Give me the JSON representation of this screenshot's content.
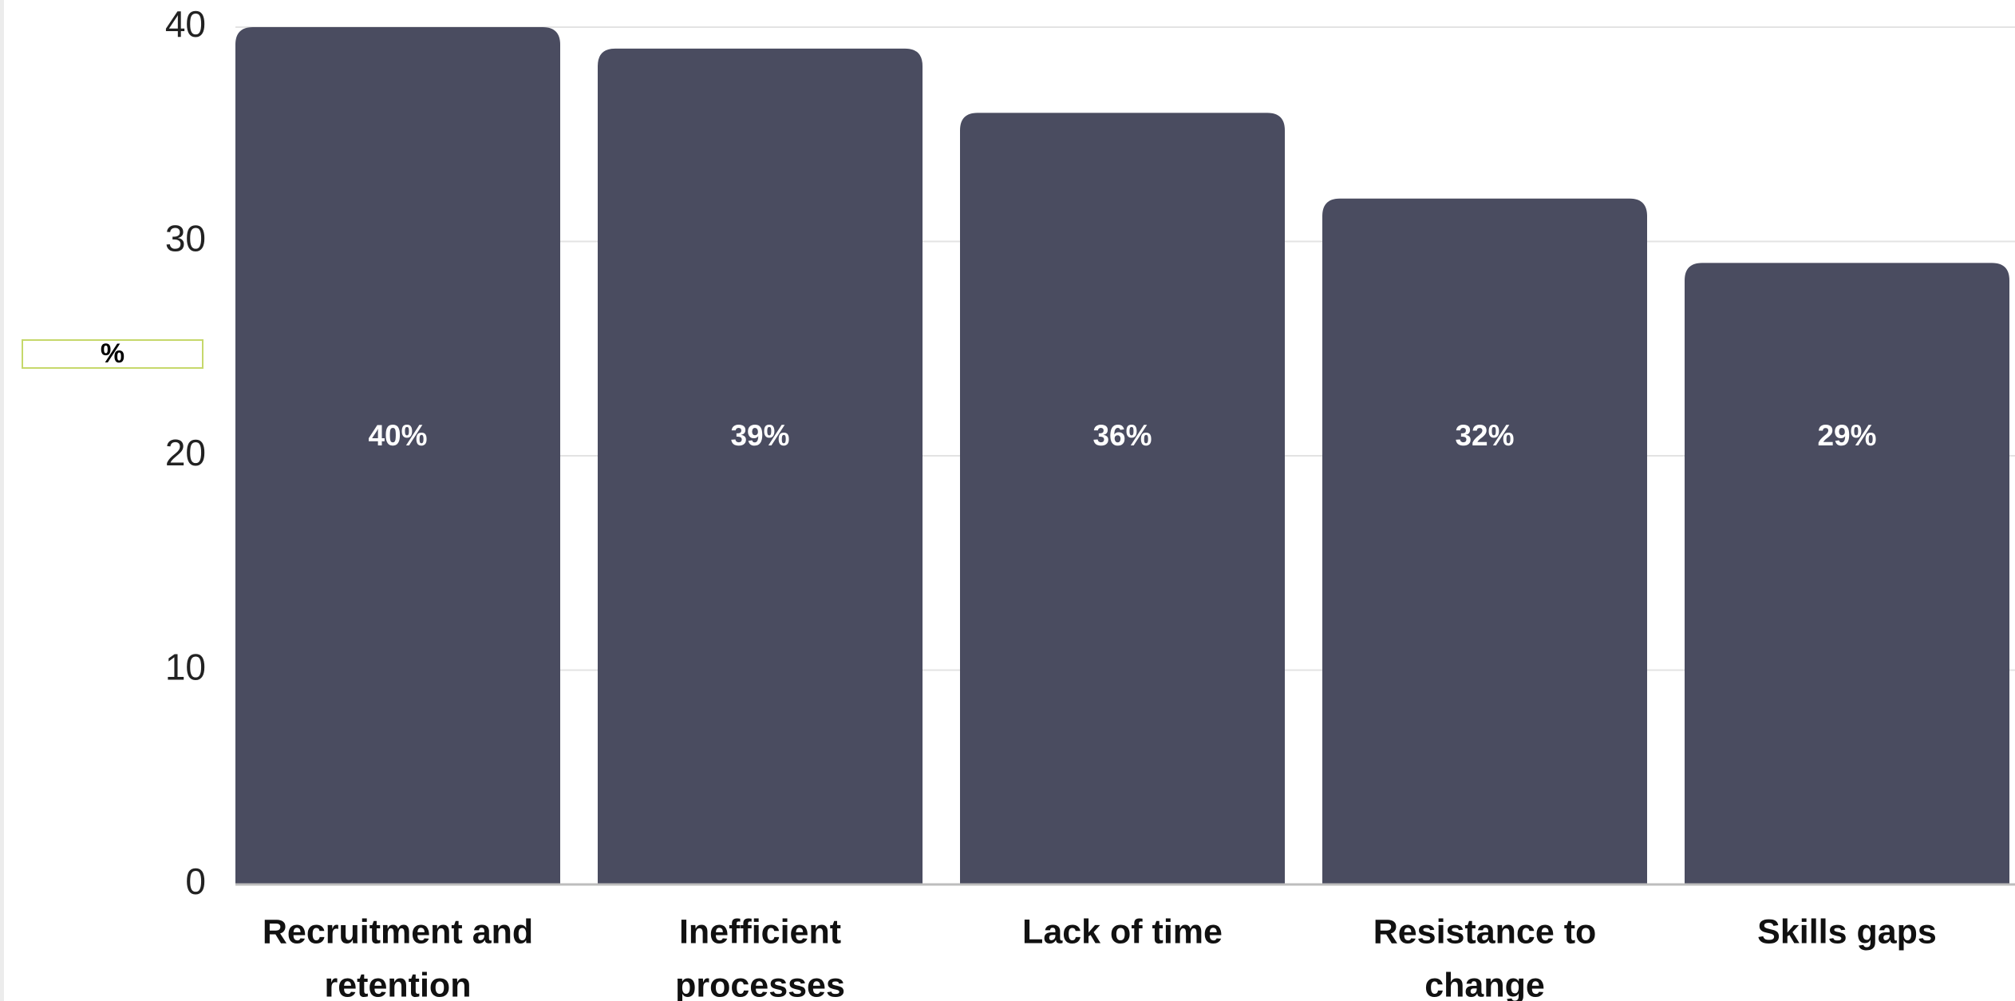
{
  "chart_data": {
    "type": "bar",
    "categories": [
      [
        "Recruitment and",
        "retention"
      ],
      [
        "Inefficient",
        "processes"
      ],
      [
        "Lack of time"
      ],
      [
        "Resistance to",
        "change"
      ],
      [
        "Skills gaps"
      ]
    ],
    "values": [
      40,
      39,
      36,
      32,
      29
    ],
    "data_labels": [
      "40%",
      "39%",
      "36%",
      "32%",
      "29%"
    ],
    "title": "",
    "xlabel": "",
    "ylabel": "%",
    "ylim": [
      0,
      40
    ],
    "yticks": [
      0,
      10,
      20,
      30,
      40
    ],
    "grid": true,
    "legend": "none",
    "colors": {
      "bar": "#4a4c60",
      "grid": "#e3e3e3",
      "axis": "#bdbdbd",
      "ylabel_border": "#c6d86b"
    }
  }
}
